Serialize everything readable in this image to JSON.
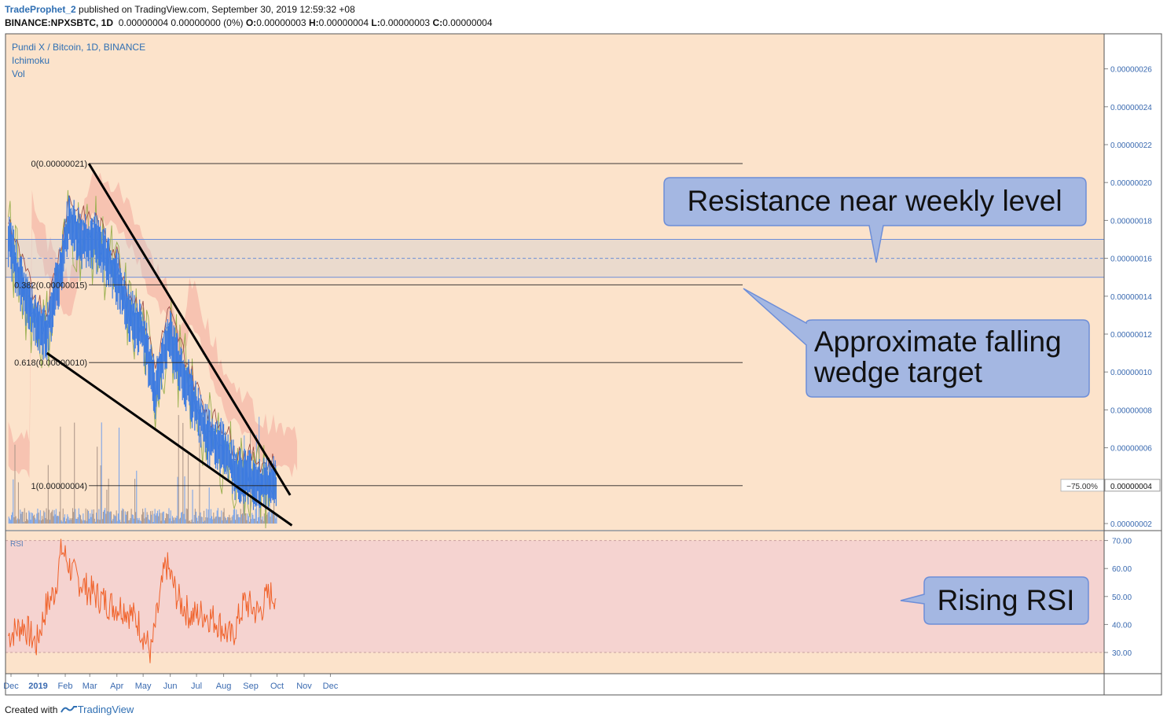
{
  "header": {
    "author": "TradeProphet_2",
    "published": "published on TradingView.com, September 30, 2019 12:59:32 +08",
    "symbol": "BINANCE:NPXSBTC, 1D",
    "ohlc_change": "0.00000004 0.00000000 (0%)",
    "o_label": "O:",
    "o_value": "0.00000003",
    "h_label": "H:",
    "h_value": "0.00000004",
    "l_label": "L:",
    "l_value": "0.00000003",
    "c_label": "C:",
    "c_value": "0.00000004"
  },
  "legend": {
    "pair": "Pundi X / Bitcoin, 1D, BINANCE",
    "ichimoku": "Ichimoku",
    "vol": "Vol",
    "rsi": "RSI"
  },
  "footer": {
    "created_with": "Created with",
    "brand": "TradingView"
  },
  "colors": {
    "panel_bg": "#fce3cb",
    "rsi_bg": "#f5d3d0",
    "candle": "#3d7be0",
    "rsi_line": "#f0622a",
    "cloud_red": "#f6b8a8",
    "cloud_green": "#dfe0b6",
    "callout_fill": "#a4b7e2",
    "callout_border": "#6d8ed8"
  },
  "chart_data": {
    "type": "line",
    "x_ticks": [
      "Dec",
      "2019",
      "Feb",
      "Mar",
      "Apr",
      "May",
      "Jun",
      "Jul",
      "Aug",
      "Sep",
      "Oct",
      "Nov",
      "Dec"
    ],
    "y_ticks": [
      "0.00000026",
      "0.00000024",
      "0.00000022",
      "0.00000020",
      "0.00000018",
      "0.00000016",
      "0.00000014",
      "0.00000012",
      "0.00000010",
      "0.00000008",
      "0.00000006",
      "0.00000004",
      "0.00000002"
    ],
    "y_values": [
      26,
      24,
      22,
      20,
      18,
      16,
      14,
      12,
      10,
      8,
      6,
      4,
      2
    ],
    "ylim": [
      1.8,
      27.0
    ],
    "rsi_ticks": [
      "70.00",
      "60.00",
      "50.00",
      "40.00",
      "30.00"
    ],
    "rsi_values": [
      70,
      60,
      50,
      40,
      30
    ],
    "rsi_range": [
      30,
      70
    ],
    "price_label": "0.00000004",
    "percent_label": "−75.00%",
    "fib_levels": [
      {
        "label": "0(0.00000021)",
        "value": 21
      },
      {
        "label": "0.382(0.00000015)",
        "value": 14.6
      },
      {
        "label": "0.618(0.00000010)",
        "value": 10.5
      },
      {
        "label": "1(0.00000004)",
        "value": 4
      }
    ],
    "resistance_zone": {
      "low": 15,
      "high": 17,
      "mid": 16
    },
    "wedge_upper": {
      "from_date": "2019-02-28",
      "from": 21,
      "to_date": "2019-10-16",
      "to": 3.5
    },
    "wedge_lower": {
      "from_date": "2019-01-11",
      "from": 11,
      "to_date": "2019-10-18",
      "to": 1.9
    },
    "price_series": [
      {
        "date": "2018-11-28",
        "value": 17
      },
      {
        "date": "2018-12-10",
        "value": 15
      },
      {
        "date": "2018-12-26",
        "value": 13
      },
      {
        "date": "2019-01-10",
        "value": 12
      },
      {
        "date": "2019-01-25",
        "value": 15
      },
      {
        "date": "2019-02-05",
        "value": 18
      },
      {
        "date": "2019-02-20",
        "value": 17
      },
      {
        "date": "2019-03-05",
        "value": 17
      },
      {
        "date": "2019-03-20",
        "value": 16
      },
      {
        "date": "2019-04-01",
        "value": 15
      },
      {
        "date": "2019-04-15",
        "value": 13
      },
      {
        "date": "2019-05-01",
        "value": 12
      },
      {
        "date": "2019-05-15",
        "value": 9
      },
      {
        "date": "2019-05-30",
        "value": 12
      },
      {
        "date": "2019-06-15",
        "value": 10
      },
      {
        "date": "2019-07-01",
        "value": 8
      },
      {
        "date": "2019-07-15",
        "value": 6.5
      },
      {
        "date": "2019-08-01",
        "value": 6
      },
      {
        "date": "2019-08-15",
        "value": 4.6
      },
      {
        "date": "2019-09-01",
        "value": 4.4
      },
      {
        "date": "2019-09-15",
        "value": 4
      },
      {
        "date": "2019-09-30",
        "value": 4
      }
    ],
    "rsi_series": [
      {
        "date": "2018-11-28",
        "value": 36
      },
      {
        "date": "2018-12-15",
        "value": 40
      },
      {
        "date": "2018-12-30",
        "value": 33
      },
      {
        "date": "2019-01-10",
        "value": 46
      },
      {
        "date": "2019-01-20",
        "value": 52
      },
      {
        "date": "2019-01-28",
        "value": 67
      },
      {
        "date": "2019-02-10",
        "value": 58
      },
      {
        "date": "2019-02-25",
        "value": 53
      },
      {
        "date": "2019-03-10",
        "value": 50
      },
      {
        "date": "2019-03-25",
        "value": 47
      },
      {
        "date": "2019-04-10",
        "value": 46
      },
      {
        "date": "2019-04-25",
        "value": 41
      },
      {
        "date": "2019-05-10",
        "value": 30
      },
      {
        "date": "2019-05-27",
        "value": 62
      },
      {
        "date": "2019-06-10",
        "value": 49
      },
      {
        "date": "2019-06-25",
        "value": 43
      },
      {
        "date": "2019-07-10",
        "value": 44
      },
      {
        "date": "2019-07-25",
        "value": 41
      },
      {
        "date": "2019-08-10",
        "value": 35
      },
      {
        "date": "2019-08-25",
        "value": 48
      },
      {
        "date": "2019-09-10",
        "value": 44
      },
      {
        "date": "2019-09-20",
        "value": 50
      },
      {
        "date": "2019-09-30",
        "value": 51
      }
    ]
  },
  "annotations": {
    "resistance": "Resistance near weekly level",
    "wedge_line1": "Approximate falling",
    "wedge_line2": "wedge target",
    "rsi": "Rising RSI"
  }
}
